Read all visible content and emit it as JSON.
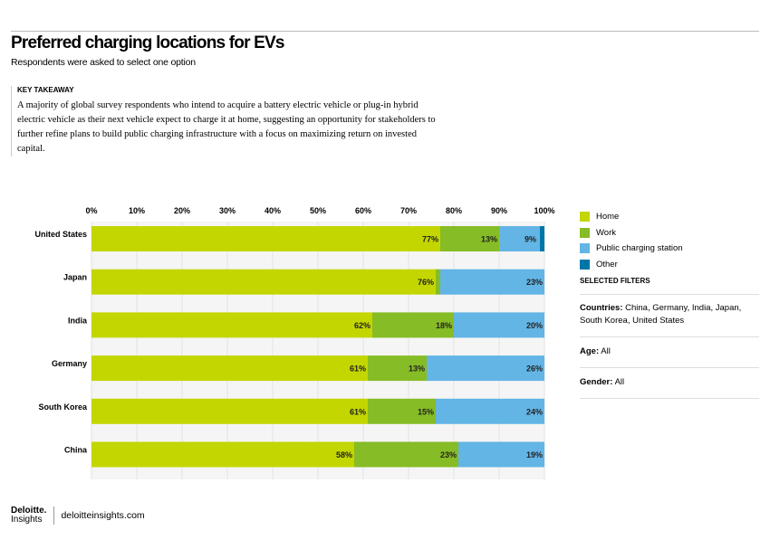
{
  "header": {
    "title": "Preferred charging locations for EVs",
    "subtitle": "Respondents were asked to select one option"
  },
  "key_takeaway": {
    "heading": "KEY TAKEAWAY",
    "body": "A majority of global survey respondents who intend to acquire a battery electric vehicle or plug-in hybrid electric vehicle as their next vehicle expect to charge it at home, suggesting an opportunity for stakeholders to further refine plans to build public charging infrastructure with a focus on maximizing return on invested capital."
  },
  "chart_data": {
    "type": "bar",
    "orientation": "horizontal",
    "stacked": true,
    "categories": [
      "United States",
      "Japan",
      "India",
      "Germany",
      "South Korea",
      "China"
    ],
    "xlim": [
      0,
      100
    ],
    "xticks": [
      "0%",
      "10%",
      "20%",
      "30%",
      "40%",
      "50%",
      "60%",
      "70%",
      "80%",
      "90%",
      "100%"
    ],
    "grid": true,
    "legend_position": "right",
    "series": [
      {
        "name": "Home",
        "color": "#c3d600",
        "values": [
          77,
          76,
          62,
          61,
          61,
          58
        ],
        "labels": [
          "77%",
          "76%",
          "62%",
          "61%",
          "61%",
          "58%"
        ]
      },
      {
        "name": "Work",
        "color": "#86bc25",
        "values": [
          13,
          1,
          18,
          13,
          15,
          23
        ],
        "labels": [
          "13%",
          "",
          "18%",
          "13%",
          "15%",
          "23%"
        ]
      },
      {
        "name": "Public charging station",
        "color": "#62b5e5",
        "values": [
          9,
          23,
          20,
          26,
          24,
          19
        ],
        "labels": [
          "9%",
          "23%",
          "20%",
          "26%",
          "24%",
          "19%"
        ]
      },
      {
        "name": "Other",
        "color": "#0076a8",
        "values": [
          1,
          0,
          0,
          0,
          0,
          0
        ],
        "labels": [
          "",
          "",
          "",
          "",
          "",
          ""
        ]
      }
    ]
  },
  "filters": {
    "heading": "SELECTED FILTERS",
    "countries_label": "Countries:",
    "countries": "China, Germany, India, Japan, South Korea, United States",
    "age_label": "Age:",
    "age": "All",
    "gender_label": "Gender:",
    "gender": "All"
  },
  "footer": {
    "logo_top": "Deloitte.",
    "logo_bottom": "Insights",
    "site": "deloitteinsights.com"
  }
}
